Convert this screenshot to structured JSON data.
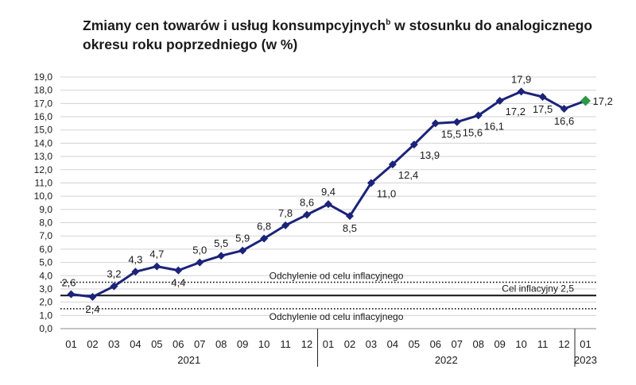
{
  "title": {
    "main_a": "Zmiany cen towarów i usług konsumpcyjnych",
    "superscript": "b",
    "main_b": " w stosunku do analogicznego okresu roku poprzedniego (w %)"
  },
  "colors": {
    "line": "#1b237a",
    "marker": "#1b237a",
    "latest_marker": "#2e9a46",
    "target_line": "#111111",
    "band_line": "#111111",
    "grid": "#d3d3d3"
  },
  "chart_data": {
    "type": "line",
    "categories": [
      "01",
      "02",
      "03",
      "04",
      "05",
      "06",
      "07",
      "08",
      "09",
      "10",
      "11",
      "12",
      "01",
      "02",
      "03",
      "04",
      "05",
      "06",
      "07",
      "08",
      "09",
      "10",
      "11",
      "12",
      "01"
    ],
    "year_labels": [
      {
        "label": "2021",
        "from": 0,
        "to": 11
      },
      {
        "label": "2022",
        "from": 12,
        "to": 23
      },
      {
        "label": "2023",
        "from": 24,
        "to": 24
      }
    ],
    "series": [
      {
        "values": [
          2.6,
          2.4,
          3.2,
          4.3,
          4.7,
          4.4,
          5.0,
          5.5,
          5.9,
          6.8,
          7.8,
          8.6,
          9.4,
          8.5,
          11.0,
          12.4,
          13.9,
          15.5,
          15.6,
          16.1,
          17.2,
          17.9,
          17.5,
          16.6,
          17.2
        ],
        "data_labels": [
          "2,6",
          "2,4",
          "3,2",
          "4,3",
          "4,7",
          "4,4",
          "5,0",
          "5,5",
          "5,9",
          "6,8",
          "7,8",
          "8,6",
          "9,4",
          "8,5",
          "11,0",
          "12,4",
          "13,9",
          "15,5",
          "15,6",
          "16,1",
          "17,2",
          "17,9",
          "17,5",
          "16,6",
          "17,2"
        ]
      }
    ],
    "ylim": [
      0,
      19
    ],
    "y_ticks": [
      0,
      1,
      2,
      3,
      4,
      5,
      6,
      7,
      8,
      9,
      10,
      11,
      12,
      13,
      14,
      15,
      16,
      17,
      18,
      19
    ],
    "y_tick_labels": [
      "0,0",
      "1,0",
      "2,0",
      "3,0",
      "4,0",
      "5,0",
      "6,0",
      "7,0",
      "8,0",
      "9,0",
      "10,0",
      "11,0",
      "12,0",
      "13,0",
      "14,0",
      "15,0",
      "16,0",
      "17,0",
      "18,0",
      "19,0"
    ],
    "grid": true,
    "reference_lines": [
      {
        "value": 2.5,
        "style": "solid",
        "label": "Cel inflacyjny 2,5"
      },
      {
        "value": 3.5,
        "style": "dotted",
        "label": "Odchylenie od celu inflacyjnego"
      },
      {
        "value": 1.5,
        "style": "dotted",
        "label": "Odchylenie od celu inflacyjnego"
      }
    ],
    "highlighted_last_point": true
  }
}
